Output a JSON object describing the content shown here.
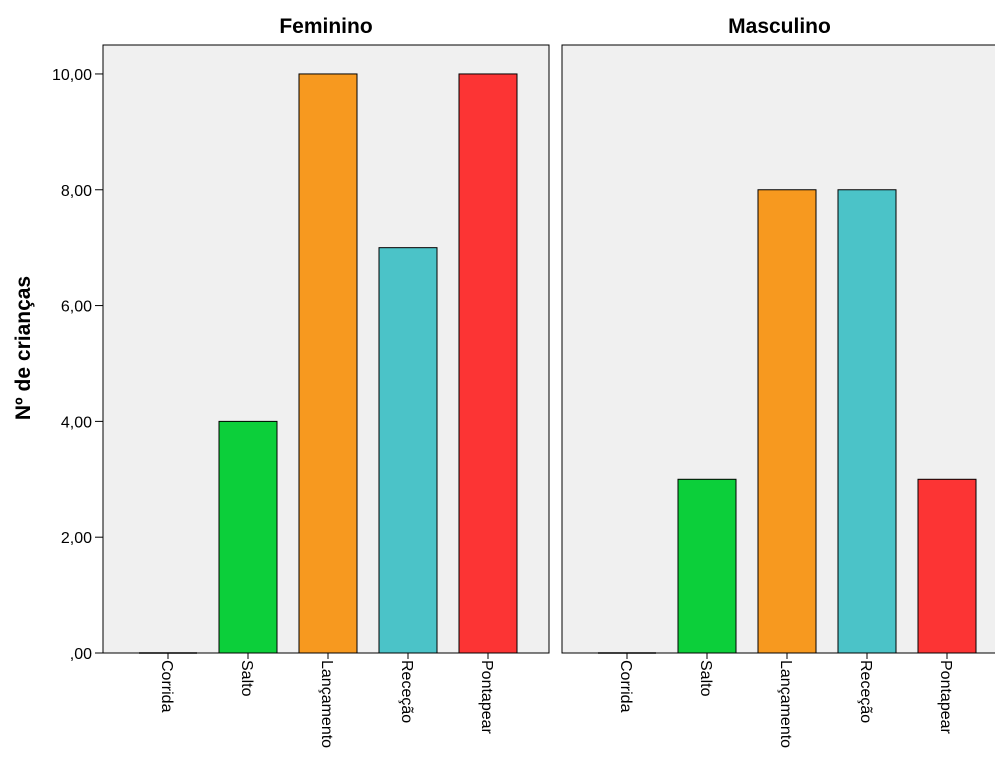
{
  "chart_data": {
    "type": "bar",
    "ylabel": "Nº de crianças",
    "ylim": [
      0,
      10.5
    ],
    "yticks": [
      {
        "value": 0,
        "label": ",00"
      },
      {
        "value": 2,
        "label": "2,00"
      },
      {
        "value": 4,
        "label": "4,00"
      },
      {
        "value": 6,
        "label": "6,00"
      },
      {
        "value": 8,
        "label": "8,00"
      },
      {
        "value": 10,
        "label": "10,00"
      }
    ],
    "categories": [
      "Corrida",
      "Salto",
      "Lançamento",
      "Receção",
      "Pontapear"
    ],
    "colors": [
      "#0ccf3a",
      "#0ccf3a",
      "#f7991f",
      "#4bc3c8",
      "#fc3434"
    ],
    "panels": [
      {
        "title": "Feminino",
        "values": [
          0,
          4,
          10,
          7,
          10
        ]
      },
      {
        "title": "Masculino",
        "values": [
          0,
          3,
          8,
          8,
          3
        ]
      }
    ],
    "grid": false
  }
}
